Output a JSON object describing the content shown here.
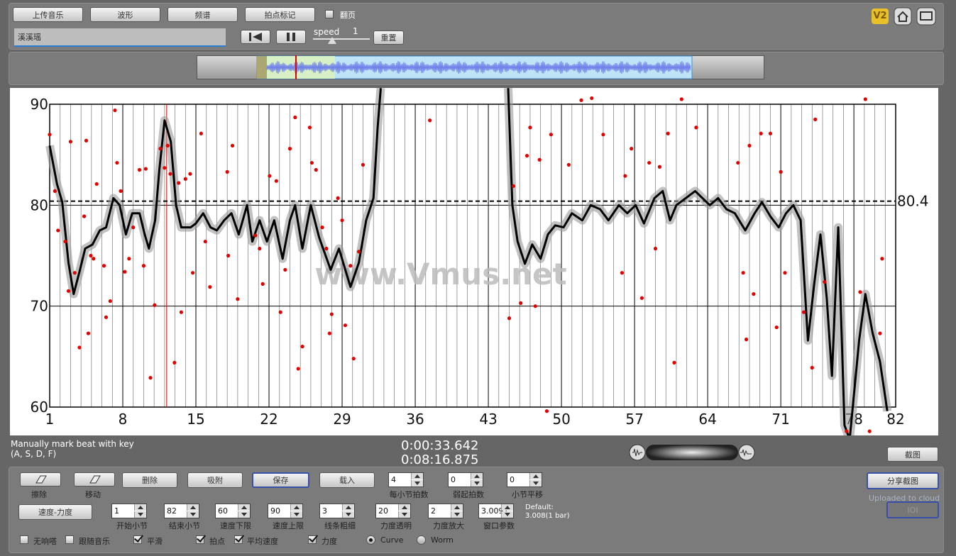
{
  "toolbar": {
    "buttons": [
      "上传音乐",
      "波形",
      "频谱",
      "拍点标记"
    ],
    "page_turn": "翻页",
    "song": "溪溪瑶",
    "speed_label": "speed",
    "speed_value": "1",
    "reset": "重置",
    "badge": "V2"
  },
  "chart_data": {
    "type": "line",
    "watermark": "www.Vmus.net",
    "color": "#000000",
    "point_color": "#e00000",
    "xlim": [
      1,
      82
    ],
    "ylim": [
      60,
      90
    ],
    "xticks": [
      1,
      8,
      15,
      22,
      29,
      36,
      43,
      50,
      57,
      64,
      71,
      78,
      82
    ],
    "yticks": [
      60,
      70,
      80,
      90
    ],
    "minor_xticks": [
      2,
      3,
      4,
      5,
      6,
      7,
      9,
      10,
      11,
      12,
      13,
      14,
      16,
      17,
      18,
      19,
      20,
      21,
      23,
      24,
      25,
      26,
      27,
      28,
      30,
      31,
      32,
      33,
      34,
      35,
      37,
      38,
      39,
      40,
      41,
      42,
      44,
      45,
      46,
      47,
      48,
      49,
      51,
      52,
      53,
      54,
      55,
      56,
      58,
      59,
      60,
      61,
      62,
      63,
      65,
      66,
      67,
      68,
      69,
      70,
      72,
      73,
      74,
      75,
      76,
      77,
      79,
      80,
      81
    ],
    "mean": 80.4,
    "cursor_x": 12.2,
    "x": [
      1,
      1.7,
      2.2,
      2.8,
      3.3,
      3.9,
      4.4,
      5.1,
      5.8,
      6.4,
      7.1,
      7.7,
      8.3,
      8.9,
      9.6,
      10.1,
      10.5,
      11.1,
      11.5,
      12,
      12.6,
      13.1,
      13.6,
      14.5,
      15,
      15.7,
      16.4,
      17,
      17.7,
      18.4,
      19.1,
      19.9,
      20.4,
      21.1,
      21.8,
      22.5,
      23.3,
      24,
      24.5,
      25.2,
      26,
      26.8,
      27.9,
      28.7,
      29.8,
      30.6,
      31.3,
      32,
      32.4,
      32.7,
      38.8,
      44.9,
      45.3,
      45.8,
      46.5,
      47.2,
      48,
      48.7,
      49.4,
      50.2,
      51,
      52,
      52.8,
      53.7,
      54.5,
      55.5,
      56.3,
      57.1,
      57.9,
      58.9,
      59.7,
      60.4,
      61,
      61.9,
      62.8,
      63.5,
      64.2,
      65,
      65.8,
      66.6,
      67.6,
      68.5,
      69.2,
      70,
      70.8,
      71.5,
      72.2,
      72.9,
      73.6,
      74.2,
      74.8,
      75.4,
      75.9,
      76.5,
      77.1,
      77.6,
      78.5,
      79.1,
      79.8,
      80.5,
      81.2
    ],
    "values": [
      85.9,
      82.1,
      80.3,
      74.3,
      71.2,
      73.6,
      75.7,
      76.1,
      77.5,
      77.8,
      80.7,
      80,
      77.1,
      79.2,
      79.2,
      77.1,
      75.7,
      78.5,
      83.5,
      88.4,
      86.3,
      80,
      77.8,
      77.8,
      78.2,
      79.2,
      77.8,
      77.5,
      78.5,
      79.2,
      77.1,
      80,
      76.4,
      78.5,
      76.4,
      78.5,
      74.7,
      78.5,
      80,
      75.7,
      80,
      76.8,
      73.6,
      75.7,
      71.9,
      74.3,
      78.5,
      80.7,
      87.7,
      91.6,
      null,
      91.6,
      80,
      76.4,
      74.2,
      76.1,
      74.7,
      77.1,
      78,
      77.8,
      79.2,
      78.5,
      80,
      79.6,
      78.5,
      80,
      79.2,
      80,
      78.2,
      80.7,
      81.4,
      78.5,
      80,
      80.7,
      81.4,
      80.7,
      80,
      80.7,
      79.6,
      79.2,
      77.5,
      79.2,
      80.3,
      78.9,
      77.8,
      79.2,
      80,
      78.5,
      66.6,
      72.2,
      77.1,
      70.8,
      63.1,
      77.8,
      58.2,
      56.8,
      66.6,
      71.2,
      67.3,
      64.5,
      59.6
    ],
    "points": {
      "x": [
        1,
        1.5,
        1.8,
        2.5,
        2.8,
        3,
        3.4,
        3.85,
        4.3,
        4.5,
        4.7,
        4.94,
        5.2,
        5.5,
        6.2,
        6.4,
        6.8,
        7.25,
        7.45,
        7.8,
        8.2,
        8.6,
        9,
        9.6,
        10,
        10.2,
        10.65,
        11.05,
        11.6,
        12,
        12.3,
        12.55,
        12.95,
        13.35,
        13.6,
        14,
        14.45,
        14.7,
        15.5,
        15.9,
        16.35,
        18,
        18.1,
        18.5,
        19,
        20.7,
        21.1,
        21.4,
        22.06,
        22.7,
        23.1,
        23.55,
        24,
        24.5,
        24.8,
        25.2,
        25.9,
        26.1,
        26.5,
        27.1,
        27.5,
        27.8,
        28,
        28.6,
        29,
        29.3,
        29.8,
        30.1,
        30.6,
        31,
        37.4,
        45,
        45.4,
        46.1,
        46.7,
        47,
        47.5,
        47.9,
        48.6,
        49,
        50.7,
        51.9,
        52.9,
        54,
        55.8,
        56.1,
        56.7,
        57.7,
        58.4,
        59,
        59.4,
        60.2,
        60.8,
        61.5,
        62.9,
        66.9,
        67.4,
        67.7,
        68,
        68.4,
        69.1,
        70,
        70.6,
        71,
        71.4,
        73.2,
        74,
        74.3,
        75.2,
        77.3,
        78.6,
        79.1,
        79.5,
        80.5,
        80.7
      ],
      "y": [
        87,
        81.4,
        77.5,
        76.4,
        71.5,
        86.3,
        73.3,
        65.9,
        78.9,
        86.4,
        67.3,
        75,
        74.7,
        82.1,
        74,
        68.9,
        70.5,
        89.4,
        84.2,
        81.4,
        73.4,
        74.7,
        77.8,
        83.5,
        74,
        83.6,
        62.9,
        70.1,
        85.6,
        83.7,
        85.9,
        83.1,
        64.4,
        82.2,
        69.4,
        82.6,
        83.1,
        73.3,
        87.1,
        76.4,
        71.9,
        83.3,
        75,
        85.9,
        70.7,
        77,
        75.7,
        72.2,
        82.9,
        82.4,
        69.4,
        73.6,
        85.6,
        88.7,
        63.8,
        66,
        87.7,
        84.2,
        83.5,
        77.8,
        75.7,
        67.3,
        69.2,
        80.7,
        78.5,
        68.1,
        74,
        64.8,
        75.4,
        84,
        88.4,
        68.8,
        81.9,
        70.3,
        84.9,
        87.7,
        70,
        84.5,
        59.6,
        87,
        84,
        90.4,
        90.6,
        87,
        73.3,
        82.9,
        85.6,
        70.8,
        84.2,
        75.7,
        83.8,
        87.1,
        64.4,
        90.5,
        87.7,
        84.2,
        73.3,
        66.7,
        85.9,
        71.2,
        87.1,
        87.1,
        67.9,
        83.3,
        73.3,
        69.4,
        63.9,
        88.5,
        72.4,
        57.6,
        71.4,
        90.5,
        57.6,
        67.3,
        74.7
      ]
    }
  },
  "status": {
    "hint": [
      "Manually mark beat with key",
      "(A, S, D, F)"
    ],
    "time_current": "0:00:33.642",
    "time_total": "0:08:16.875",
    "screenshot": "截图"
  },
  "controls": {
    "tools": [
      "擦除",
      "移动"
    ],
    "buttons": [
      "删除",
      "吸附",
      "保存",
      "载入"
    ],
    "row1": [
      {
        "value": "4",
        "label": "每小节拍数"
      },
      {
        "value": "0",
        "label": "弱起拍数"
      },
      {
        "value": "0",
        "label": "小节平移"
      }
    ],
    "mode_button": "速度-力度",
    "row2": [
      {
        "value": "1",
        "label": "开始小节"
      },
      {
        "value": "82",
        "label": "结束小节"
      },
      {
        "value": "60",
        "label": "速度下限"
      },
      {
        "value": "90",
        "label": "速度上限"
      },
      {
        "value": "3",
        "label": "线条粗细"
      },
      {
        "value": "20",
        "label": "力度透明"
      },
      {
        "value": "2",
        "label": "力度放大"
      },
      {
        "value": "3.0091",
        "label": "窗口参数"
      }
    ],
    "default_note": [
      "Default:",
      "3.008(1 bar)"
    ],
    "checkboxes": [
      {
        "label": "无响嗒",
        "checked": false
      },
      {
        "label": "跟随音乐",
        "checked": false
      },
      {
        "label": "平滑",
        "checked": true
      },
      {
        "label": "拍点",
        "checked": true
      },
      {
        "label": "平均速度",
        "checked": true
      },
      {
        "label": "力度",
        "checked": true
      }
    ],
    "radios": [
      {
        "label": "Curve",
        "selected": true
      },
      {
        "label": "Worm",
        "selected": false
      }
    ],
    "share": "分享截图",
    "uploaded": "Uploaded to cloud",
    "ioi": "IOI"
  }
}
